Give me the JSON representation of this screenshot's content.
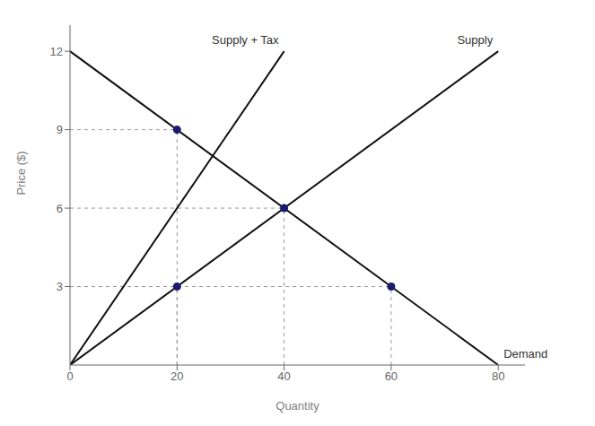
{
  "chart_data": {
    "type": "line",
    "x_label": "Quantity",
    "y_label": "Price ($)",
    "series": [
      {
        "name": "Supply",
        "x": [
          0,
          80
        ],
        "values": [
          0,
          12
        ],
        "color": "#111111"
      },
      {
        "name": "Supply + Tax",
        "x": [
          0,
          40
        ],
        "values": [
          0,
          12
        ],
        "color": "#111111"
      },
      {
        "name": "Demand",
        "x": [
          0,
          80
        ],
        "values": [
          12,
          0
        ],
        "color": "#111111"
      },
      {
        "type": "scatter",
        "x": [
          20,
          40,
          20,
          60
        ],
        "values": [
          9,
          6,
          3,
          3
        ],
        "color": "#1a1a6e",
        "marker": "circle"
      }
    ],
    "xlim": [
      0,
      85
    ],
    "ylim": [
      0,
      13
    ],
    "xticks": [
      0,
      20,
      40,
      60,
      80
    ],
    "yticks": [
      3,
      6,
      9,
      12
    ]
  }
}
